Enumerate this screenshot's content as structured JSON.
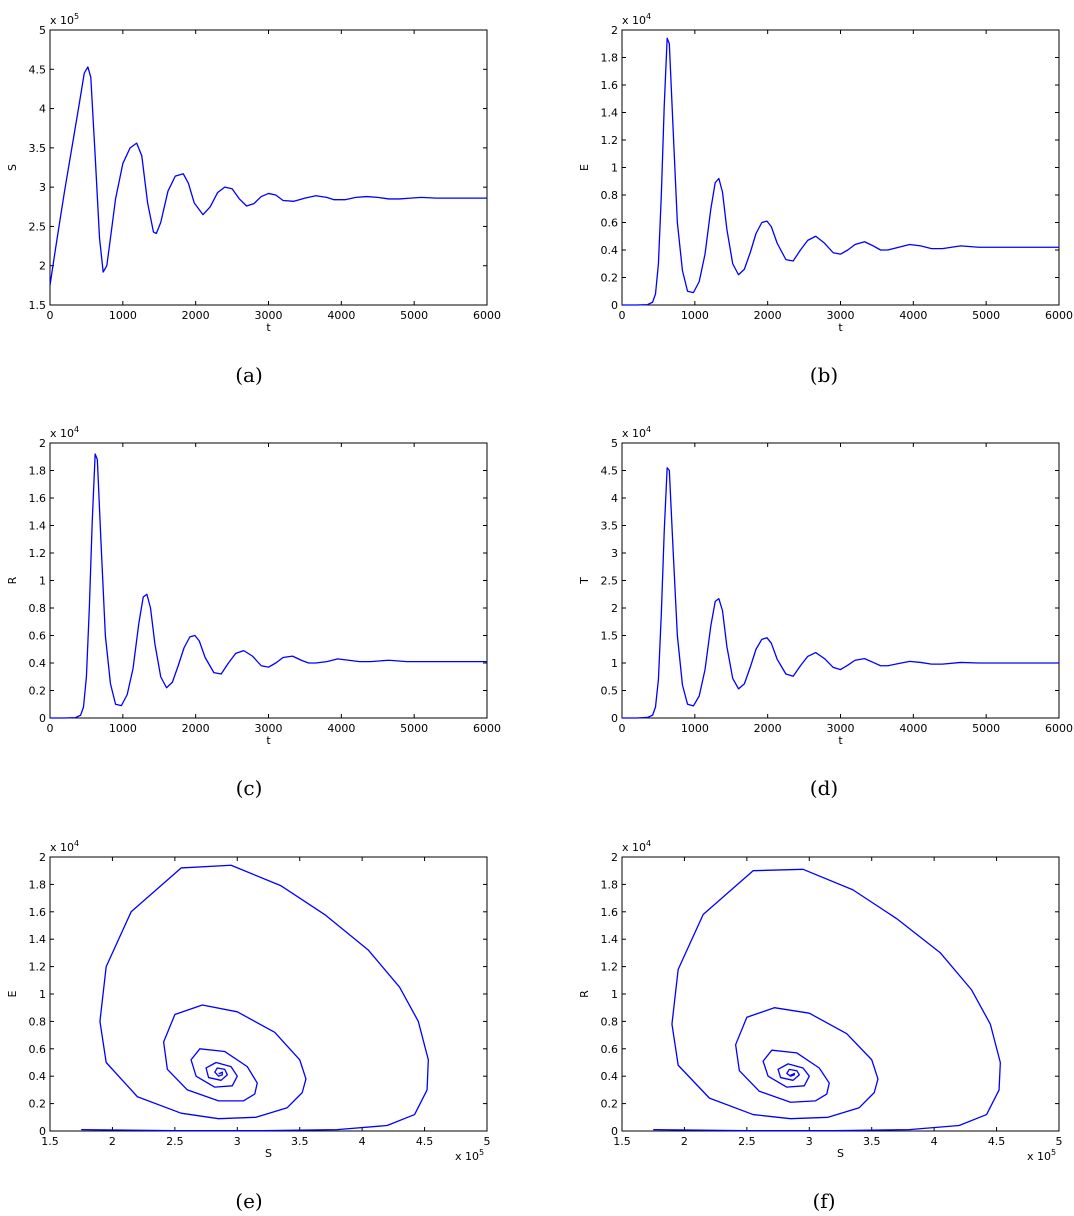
{
  "chart_data": [
    {
      "type": "line",
      "caption": "(a)",
      "xlabel": "t",
      "ylabel": "S",
      "xlim": [
        0,
        6000
      ],
      "ylim": [
        1.5,
        5
      ],
      "xticks": [
        "0",
        "1000",
        "2000",
        "3000",
        "4000",
        "5000",
        "6000"
      ],
      "yticks": [
        "1.5",
        "2",
        "2.5",
        "3",
        "3.5",
        "4",
        "4.5",
        "5"
      ],
      "yexp": "x 10^5",
      "xexp": "",
      "series": [
        {
          "color": "#0000ff",
          "x": [
            0,
            60,
            120,
            200,
            300,
            400,
            470,
            520,
            560,
            620,
            680,
            730,
            780,
            830,
            900,
            1000,
            1100,
            1190,
            1260,
            1340,
            1420,
            1460,
            1520,
            1620,
            1720,
            1830,
            1900,
            1980,
            2100,
            2200,
            2300,
            2400,
            2500,
            2600,
            2700,
            2800,
            2900,
            3000,
            3100,
            3200,
            3350,
            3500,
            3650,
            3800,
            3900,
            4050,
            4200,
            4350,
            4500,
            4650,
            4800,
            4950,
            5100,
            5300,
            5500,
            5700,
            6000
          ],
          "y": [
            1.75,
            2.12,
            2.48,
            2.95,
            3.5,
            4.05,
            4.45,
            4.53,
            4.4,
            3.4,
            2.35,
            1.92,
            2.0,
            2.35,
            2.85,
            3.3,
            3.5,
            3.56,
            3.4,
            2.8,
            2.43,
            2.41,
            2.55,
            2.95,
            3.14,
            3.17,
            3.05,
            2.8,
            2.65,
            2.75,
            2.93,
            3.0,
            2.98,
            2.85,
            2.76,
            2.79,
            2.88,
            2.92,
            2.9,
            2.83,
            2.82,
            2.86,
            2.89,
            2.87,
            2.84,
            2.84,
            2.87,
            2.88,
            2.87,
            2.85,
            2.85,
            2.86,
            2.87,
            2.86,
            2.86,
            2.86,
            2.86
          ]
        }
      ]
    },
    {
      "type": "line",
      "caption": "(b)",
      "xlabel": "t",
      "ylabel": "E",
      "xlim": [
        0,
        6000
      ],
      "ylim": [
        0,
        2
      ],
      "xticks": [
        "0",
        "1000",
        "2000",
        "3000",
        "4000",
        "5000",
        "6000"
      ],
      "yticks": [
        "0",
        "0.2",
        "0.4",
        "0.6",
        "0.8",
        "1",
        "1.2",
        "1.4",
        "1.6",
        "1.8",
        "2"
      ],
      "yexp": "x 10^4",
      "xexp": "",
      "series": [
        {
          "color": "#0000ff",
          "x": [
            0,
            200,
            350,
            420,
            460,
            500,
            540,
            580,
            620,
            650,
            700,
            760,
            830,
            900,
            980,
            1060,
            1140,
            1220,
            1280,
            1330,
            1380,
            1440,
            1520,
            1600,
            1680,
            1760,
            1840,
            1920,
            1990,
            2050,
            2130,
            2250,
            2350,
            2450,
            2550,
            2660,
            2780,
            2900,
            3000,
            3100,
            3200,
            3330,
            3450,
            3550,
            3650,
            3800,
            3950,
            4100,
            4250,
            4400,
            4650,
            4900,
            5100,
            5300,
            5550,
            5800,
            6000
          ],
          "y": [
            0,
            0,
            0.003,
            0.02,
            0.08,
            0.3,
            0.8,
            1.45,
            1.94,
            1.9,
            1.3,
            0.6,
            0.25,
            0.1,
            0.09,
            0.17,
            0.37,
            0.7,
            0.89,
            0.92,
            0.82,
            0.55,
            0.3,
            0.22,
            0.26,
            0.38,
            0.52,
            0.6,
            0.61,
            0.57,
            0.45,
            0.33,
            0.32,
            0.4,
            0.47,
            0.5,
            0.45,
            0.38,
            0.37,
            0.4,
            0.44,
            0.46,
            0.43,
            0.4,
            0.4,
            0.42,
            0.44,
            0.43,
            0.41,
            0.41,
            0.43,
            0.42,
            0.42,
            0.42,
            0.42,
            0.42,
            0.42
          ]
        }
      ]
    },
    {
      "type": "line",
      "caption": "(c)",
      "xlabel": "t",
      "ylabel": "R",
      "xlim": [
        0,
        6000
      ],
      "ylim": [
        0,
        2
      ],
      "xticks": [
        "0",
        "1000",
        "2000",
        "3000",
        "4000",
        "5000",
        "6000"
      ],
      "yticks": [
        "0",
        "0.2",
        "0.4",
        "0.6",
        "0.8",
        "1",
        "1.2",
        "1.4",
        "1.6",
        "1.8",
        "2"
      ],
      "yexp": "x 10^4",
      "xexp": "",
      "series": [
        {
          "color": "#0000ff",
          "x": [
            0,
            200,
            350,
            420,
            460,
            500,
            540,
            580,
            620,
            650,
            700,
            760,
            830,
            900,
            980,
            1060,
            1140,
            1220,
            1280,
            1330,
            1380,
            1440,
            1520,
            1600,
            1680,
            1760,
            1840,
            1920,
            1990,
            2050,
            2130,
            2250,
            2350,
            2450,
            2550,
            2660,
            2780,
            2900,
            3000,
            3100,
            3200,
            3330,
            3450,
            3550,
            3650,
            3800,
            3950,
            4100,
            4250,
            4400,
            4650,
            4900,
            5100,
            5300,
            5550,
            5800,
            6000
          ],
          "y": [
            0,
            0,
            0.003,
            0.02,
            0.08,
            0.3,
            0.8,
            1.43,
            1.92,
            1.88,
            1.28,
            0.6,
            0.25,
            0.1,
            0.09,
            0.17,
            0.36,
            0.69,
            0.88,
            0.9,
            0.8,
            0.54,
            0.3,
            0.22,
            0.26,
            0.38,
            0.51,
            0.59,
            0.6,
            0.56,
            0.44,
            0.33,
            0.32,
            0.4,
            0.47,
            0.49,
            0.45,
            0.38,
            0.37,
            0.4,
            0.44,
            0.45,
            0.42,
            0.4,
            0.4,
            0.41,
            0.43,
            0.42,
            0.41,
            0.41,
            0.42,
            0.41,
            0.41,
            0.41,
            0.41,
            0.41,
            0.41
          ]
        }
      ]
    },
    {
      "type": "line",
      "caption": "(d)",
      "xlabel": "t",
      "ylabel": "T",
      "xlim": [
        0,
        6000
      ],
      "ylim": [
        0,
        5
      ],
      "xticks": [
        "0",
        "1000",
        "2000",
        "3000",
        "4000",
        "5000",
        "6000"
      ],
      "yticks": [
        "0",
        "0.5",
        "1",
        "1.5",
        "2",
        "2.5",
        "3",
        "3.5",
        "4",
        "4.5",
        "5"
      ],
      "yexp": "x 10^4",
      "xexp": "",
      "series": [
        {
          "color": "#0000ff",
          "x": [
            0,
            200,
            350,
            420,
            460,
            500,
            540,
            580,
            620,
            650,
            700,
            760,
            830,
            900,
            980,
            1060,
            1140,
            1220,
            1280,
            1330,
            1380,
            1440,
            1520,
            1600,
            1680,
            1760,
            1840,
            1920,
            1990,
            2050,
            2130,
            2250,
            2350,
            2450,
            2550,
            2660,
            2780,
            2900,
            3000,
            3100,
            3200,
            3330,
            3450,
            3550,
            3650,
            3800,
            3950,
            4100,
            4250,
            4400,
            4650,
            4900,
            5100,
            5300,
            5550,
            5800,
            6000
          ],
          "y": [
            0,
            0,
            0.01,
            0.05,
            0.2,
            0.7,
            1.9,
            3.4,
            4.55,
            4.5,
            3.1,
            1.5,
            0.6,
            0.25,
            0.22,
            0.4,
            0.88,
            1.68,
            2.12,
            2.17,
            1.95,
            1.3,
            0.72,
            0.53,
            0.62,
            0.92,
            1.25,
            1.43,
            1.46,
            1.36,
            1.07,
            0.8,
            0.76,
            0.95,
            1.12,
            1.19,
            1.08,
            0.92,
            0.88,
            0.96,
            1.05,
            1.08,
            1.01,
            0.95,
            0.95,
            0.99,
            1.03,
            1.01,
            0.98,
            0.98,
            1.01,
            1.0,
            1.0,
            1.0,
            1.0,
            1.0,
            1.0
          ]
        }
      ]
    },
    {
      "type": "line",
      "caption": "(e)",
      "xlabel": "S",
      "ylabel": "E",
      "xlim": [
        1.5,
        5
      ],
      "ylim": [
        0,
        2
      ],
      "xticks": [
        "1.5",
        "2",
        "2.5",
        "3",
        "3.5",
        "4",
        "4.5",
        "5"
      ],
      "yticks": [
        "0",
        "0.2",
        "0.4",
        "0.6",
        "0.8",
        "1",
        "1.2",
        "1.4",
        "1.6",
        "1.8",
        "2"
      ],
      "yexp": "x 10^4",
      "xexp": "x 10^5",
      "series": [
        {
          "color": "#0000ff",
          "x": [
            1.75,
            2.5,
            3.2,
            3.8,
            4.2,
            4.42,
            4.52,
            4.53,
            4.45,
            4.3,
            4.05,
            3.7,
            3.35,
            2.95,
            2.55,
            2.15,
            1.95,
            1.9,
            1.95,
            2.2,
            2.55,
            2.85,
            3.15,
            3.4,
            3.52,
            3.55,
            3.5,
            3.3,
            3.0,
            2.72,
            2.5,
            2.41,
            2.44,
            2.6,
            2.85,
            3.05,
            3.14,
            3.16,
            3.08,
            2.9,
            2.7,
            2.63,
            2.67,
            2.82,
            2.96,
            3.0,
            2.95,
            2.83,
            2.75,
            2.77,
            2.87,
            2.92,
            2.9,
            2.84,
            2.82,
            2.85,
            2.88,
            2.88,
            2.86,
            2.85
          ],
          "y": [
            0.01,
            0.003,
            0.003,
            0.01,
            0.04,
            0.12,
            0.3,
            0.52,
            0.8,
            1.05,
            1.32,
            1.58,
            1.79,
            1.94,
            1.92,
            1.6,
            1.2,
            0.8,
            0.5,
            0.25,
            0.13,
            0.09,
            0.1,
            0.17,
            0.28,
            0.38,
            0.52,
            0.72,
            0.87,
            0.92,
            0.85,
            0.65,
            0.45,
            0.3,
            0.22,
            0.22,
            0.27,
            0.35,
            0.47,
            0.58,
            0.6,
            0.52,
            0.4,
            0.32,
            0.33,
            0.4,
            0.47,
            0.5,
            0.46,
            0.39,
            0.37,
            0.41,
            0.45,
            0.46,
            0.43,
            0.4,
            0.41,
            0.43,
            0.42,
            0.42
          ]
        }
      ]
    },
    {
      "type": "line",
      "caption": "(f)",
      "xlabel": "S",
      "ylabel": "R",
      "xlim": [
        1.5,
        5
      ],
      "ylim": [
        0,
        2
      ],
      "xticks": [
        "1.5",
        "2",
        "2.5",
        "3",
        "3.5",
        "4",
        "4.5",
        "5"
      ],
      "yticks": [
        "0",
        "0.2",
        "0.4",
        "0.6",
        "0.8",
        "1",
        "1.2",
        "1.4",
        "1.6",
        "1.8",
        "2"
      ],
      "yexp": "x 10^4",
      "xexp": "x 10^5",
      "series": [
        {
          "color": "#0000ff",
          "x": [
            1.75,
            2.5,
            3.2,
            3.8,
            4.2,
            4.42,
            4.52,
            4.53,
            4.45,
            4.3,
            4.05,
            3.7,
            3.35,
            2.95,
            2.55,
            2.15,
            1.95,
            1.9,
            1.95,
            2.2,
            2.55,
            2.85,
            3.15,
            3.4,
            3.52,
            3.55,
            3.5,
            3.3,
            3.0,
            2.72,
            2.5,
            2.41,
            2.44,
            2.6,
            2.85,
            3.05,
            3.14,
            3.16,
            3.08,
            2.9,
            2.7,
            2.63,
            2.67,
            2.82,
            2.96,
            3.0,
            2.95,
            2.83,
            2.75,
            2.77,
            2.87,
            2.92,
            2.9,
            2.84,
            2.82,
            2.85,
            2.88,
            2.88,
            2.86,
            2.85
          ],
          "y": [
            0.01,
            0.003,
            0.003,
            0.01,
            0.04,
            0.12,
            0.3,
            0.5,
            0.78,
            1.03,
            1.3,
            1.55,
            1.76,
            1.91,
            1.9,
            1.58,
            1.18,
            0.78,
            0.48,
            0.24,
            0.12,
            0.09,
            0.1,
            0.17,
            0.28,
            0.38,
            0.52,
            0.71,
            0.86,
            0.9,
            0.83,
            0.63,
            0.44,
            0.29,
            0.21,
            0.22,
            0.27,
            0.35,
            0.46,
            0.57,
            0.59,
            0.51,
            0.4,
            0.32,
            0.33,
            0.4,
            0.46,
            0.49,
            0.45,
            0.39,
            0.37,
            0.41,
            0.44,
            0.45,
            0.42,
            0.4,
            0.41,
            0.42,
            0.41,
            0.41
          ]
        }
      ]
    }
  ]
}
